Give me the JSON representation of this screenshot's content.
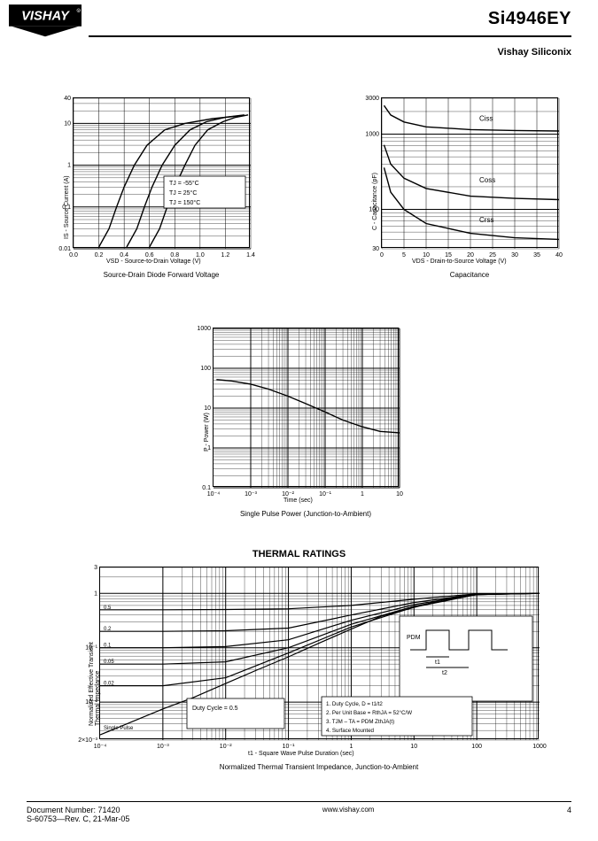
{
  "header": {
    "product": "Si4946EY",
    "vendor": "Vishay Siliconix"
  },
  "fwd": {
    "type": "line-loglog",
    "title": "Source-Drain Diode Forward Voltage",
    "xlabel": "VSD - Source-to-Drain Voltage (V)",
    "ylabel": "IS - Source Current (A)",
    "xlim": [
      0.0,
      1.4
    ],
    "xtick_step": 0.2,
    "ylim": [
      0.01,
      40
    ],
    "yticks": [
      0.01,
      0.1,
      1,
      10,
      40
    ],
    "ytick_labels": [
      "0.01",
      "0.1",
      "1",
      "10",
      "40"
    ],
    "series": [
      {
        "label": "TJ = 150°C",
        "color": "#000000",
        "pts": [
          [
            0.2,
            0.011
          ],
          [
            0.28,
            0.03
          ],
          [
            0.34,
            0.1
          ],
          [
            0.4,
            0.3
          ],
          [
            0.48,
            1.0
          ],
          [
            0.58,
            3.0
          ],
          [
            0.72,
            7.0
          ],
          [
            0.88,
            10
          ],
          [
            1.1,
            13
          ],
          [
            1.3,
            15
          ]
        ]
      },
      {
        "label": "TJ = 25°C",
        "color": "#000000",
        "pts": [
          [
            0.42,
            0.011
          ],
          [
            0.5,
            0.03
          ],
          [
            0.56,
            0.1
          ],
          [
            0.62,
            0.3
          ],
          [
            0.7,
            1.0
          ],
          [
            0.8,
            3.0
          ],
          [
            0.92,
            7.0
          ],
          [
            1.05,
            11
          ],
          [
            1.2,
            14
          ],
          [
            1.35,
            16
          ]
        ]
      },
      {
        "label": "TJ = -55°C",
        "color": "#000000",
        "pts": [
          [
            0.6,
            0.011
          ],
          [
            0.68,
            0.03
          ],
          [
            0.74,
            0.1
          ],
          [
            0.8,
            0.3
          ],
          [
            0.88,
            1.0
          ],
          [
            0.96,
            3.0
          ],
          [
            1.06,
            7.0
          ],
          [
            1.18,
            11
          ],
          [
            1.28,
            14
          ],
          [
            1.38,
            16
          ]
        ]
      }
    ],
    "legend_lines": [
      "TJ = -55°C",
      "TJ = 25°C",
      "TJ = 150°C"
    ],
    "background_color": "#ffffff",
    "grid_color": "#000000",
    "line_width": 1.4
  },
  "cap": {
    "type": "line-loglog",
    "title": "Capacitance",
    "xlabel": "VDS - Drain-to-Source Voltage (V)",
    "ylabel": "C - Capacitance (pF)",
    "xlim": [
      0,
      40
    ],
    "xtick_step": 5,
    "xtick_labels": [
      "0",
      "5",
      "10",
      "15",
      "20",
      "25",
      "30",
      "35",
      "40"
    ],
    "ylim": [
      30,
      3000
    ],
    "yticks": [
      30,
      100,
      1000,
      3000
    ],
    "ytick_labels": [
      "30",
      "100",
      "1000",
      "3000"
    ],
    "series": [
      {
        "label": "Ciss",
        "color": "#000000",
        "pts": [
          [
            0.5,
            2400
          ],
          [
            2,
            1800
          ],
          [
            5,
            1450
          ],
          [
            10,
            1250
          ],
          [
            20,
            1150
          ],
          [
            30,
            1120
          ],
          [
            40,
            1100
          ]
        ]
      },
      {
        "label": "Coss",
        "color": "#000000",
        "pts": [
          [
            0.5,
            720
          ],
          [
            2,
            400
          ],
          [
            5,
            260
          ],
          [
            10,
            190
          ],
          [
            20,
            150
          ],
          [
            30,
            140
          ],
          [
            40,
            135
          ]
        ]
      },
      {
        "label": "Crss",
        "color": "#000000",
        "pts": [
          [
            0.5,
            360
          ],
          [
            2,
            170
          ],
          [
            5,
            100
          ],
          [
            10,
            65
          ],
          [
            20,
            48
          ],
          [
            30,
            42
          ],
          [
            40,
            40
          ]
        ]
      }
    ],
    "series_labels_pos": [
      {
        "label": "Ciss",
        "x": 22,
        "y": 1500
      },
      {
        "label": "Coss",
        "x": 22,
        "y": 230
      },
      {
        "label": "Crss",
        "x": 22,
        "y": 68
      }
    ],
    "background_color": "#ffffff",
    "grid_color": "#000000",
    "line_width": 1.4
  },
  "rev": {
    "type": "line-loglog",
    "title": "Single Pulse Power (Junction-to-Ambient)",
    "xlabel": "Time (sec)",
    "ylabel": "P - Power (W)",
    "xlim": [
      0.0001,
      10
    ],
    "xticks": [
      0.0001,
      0.001,
      0.01,
      0.1,
      1,
      10
    ],
    "xtick_labels": [
      "10⁻⁴",
      "10⁻³",
      "10⁻²",
      "10⁻¹",
      "1",
      "10"
    ],
    "ylim": [
      0.1,
      1000
    ],
    "yticks": [
      0.1,
      1,
      10,
      100,
      1000
    ],
    "ytick_labels": [
      "0.1",
      "1",
      "10",
      "100",
      "1000"
    ],
    "series": [
      {
        "label": "",
        "color": "#000000",
        "pts": [
          [
            0.00012,
            52
          ],
          [
            0.0003,
            48
          ],
          [
            0.001,
            40
          ],
          [
            0.003,
            30
          ],
          [
            0.01,
            20
          ],
          [
            0.03,
            13
          ],
          [
            0.1,
            8
          ],
          [
            0.3,
            5.0
          ],
          [
            1,
            3.4
          ],
          [
            3,
            2.6
          ],
          [
            10,
            2.4
          ]
        ]
      }
    ],
    "background_color": "#ffffff",
    "grid_color": "#000000",
    "line_width": 1.4
  },
  "zth": {
    "type": "line-loglog",
    "title_top": "THERMAL RATINGS",
    "title": "Normalized Thermal Transient Impedance, Junction-to-Ambient",
    "xlabel": "t1 - Square Wave Pulse Duration (sec)",
    "ylabel": "Normalized Effective Transient\nThermal Impedance",
    "xlim": [
      0.0001,
      1000
    ],
    "xticks": [
      0.0001,
      0.001,
      0.01,
      0.1,
      1,
      10,
      100,
      1000
    ],
    "xtick_labels": [
      "10⁻⁴",
      "10⁻³",
      "10⁻²",
      "10⁻¹",
      "1",
      "10",
      "100",
      "1000"
    ],
    "ylim": [
      0.002,
      3
    ],
    "yticks": [
      0.002,
      0.01,
      0.1,
      1,
      3
    ],
    "ytick_labels": [
      "2×10⁻³",
      "10⁻²",
      "10⁻¹",
      "1",
      "3"
    ],
    "duty_values": [
      "0.5",
      "0.2",
      "0.1",
      "0.05",
      "0.02",
      "Single Pulse"
    ],
    "series": [
      {
        "label": "0.5",
        "color": "#000000",
        "pts": [
          [
            0.0001,
            0.5
          ],
          [
            0.001,
            0.5
          ],
          [
            0.01,
            0.505
          ],
          [
            0.1,
            0.52
          ],
          [
            1,
            0.6
          ],
          [
            10,
            0.78
          ],
          [
            100,
            0.98
          ],
          [
            1000,
            1.0
          ]
        ]
      },
      {
        "label": "0.2",
        "color": "#000000",
        "pts": [
          [
            0.0001,
            0.2
          ],
          [
            0.001,
            0.2
          ],
          [
            0.01,
            0.205
          ],
          [
            0.1,
            0.23
          ],
          [
            1,
            0.4
          ],
          [
            10,
            0.68
          ],
          [
            100,
            0.97
          ],
          [
            1000,
            1.0
          ]
        ]
      },
      {
        "label": "0.1",
        "color": "#000000",
        "pts": [
          [
            0.0001,
            0.1
          ],
          [
            0.001,
            0.1
          ],
          [
            0.01,
            0.105
          ],
          [
            0.1,
            0.14
          ],
          [
            1,
            0.32
          ],
          [
            10,
            0.62
          ],
          [
            100,
            0.96
          ],
          [
            1000,
            1.0
          ]
        ]
      },
      {
        "label": "0.05",
        "color": "#000000",
        "pts": [
          [
            0.0001,
            0.05
          ],
          [
            0.001,
            0.05
          ],
          [
            0.01,
            0.055
          ],
          [
            0.1,
            0.1
          ],
          [
            1,
            0.27
          ],
          [
            10,
            0.58
          ],
          [
            100,
            0.95
          ],
          [
            1000,
            1.0
          ]
        ]
      },
      {
        "label": "0.02",
        "color": "#000000",
        "pts": [
          [
            0.0001,
            0.02
          ],
          [
            0.001,
            0.02
          ],
          [
            0.01,
            0.028
          ],
          [
            0.1,
            0.08
          ],
          [
            1,
            0.24
          ],
          [
            10,
            0.56
          ],
          [
            100,
            0.95
          ],
          [
            1000,
            1.0
          ]
        ]
      },
      {
        "label": "Single Pulse",
        "color": "#000000",
        "pts": [
          [
            0.0001,
            0.0025
          ],
          [
            0.0003,
            0.0042
          ],
          [
            0.001,
            0.0075
          ],
          [
            0.003,
            0.012
          ],
          [
            0.01,
            0.022
          ],
          [
            0.03,
            0.038
          ],
          [
            0.1,
            0.068
          ],
          [
            0.3,
            0.12
          ],
          [
            1,
            0.22
          ],
          [
            3,
            0.38
          ],
          [
            10,
            0.55
          ],
          [
            30,
            0.78
          ],
          [
            100,
            0.95
          ],
          [
            1000,
            1.0
          ]
        ]
      }
    ],
    "legend_note": "Duty Cycle = 0.5",
    "pulse_diagram": {
      "pdm_label": "PDM",
      "t1_label": "t1",
      "t2_label": "t2",
      "notes": [
        "1. Duty Cycle, D = t1/t2",
        "2. Per Unit Base = RthJA = 52°C/W",
        "3. TJM – TA = PDM ZthJA(t)",
        "4. Surface Mounted"
      ]
    },
    "background_color": "#ffffff",
    "grid_color": "#000000",
    "line_width": 1.2
  },
  "footer": {
    "date": "Document Number: 71420",
    "mid": "www.vishay.com",
    "page": "S-60753—Rev. C, 21-Mar-05",
    "page_no": "4"
  }
}
